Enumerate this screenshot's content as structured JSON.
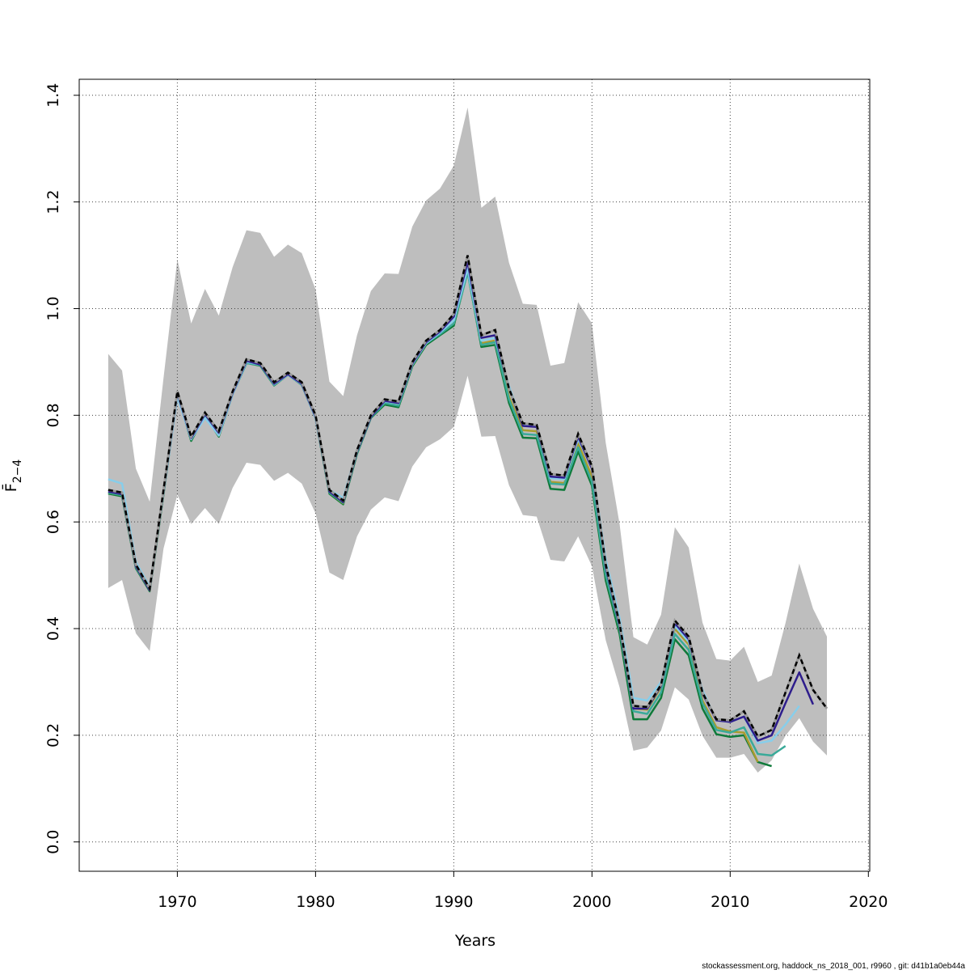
{
  "chart_data": {
    "type": "line",
    "title": "",
    "xlabel": "Years",
    "ylabel": "F̄",
    "ylabel_subscript": "2−4",
    "xlim": [
      1962.9,
      2020.1
    ],
    "ylim": [
      -0.055,
      1.43
    ],
    "xticks": [
      1970,
      1980,
      1990,
      2000,
      2010,
      2020
    ],
    "yticks": [
      0.0,
      0.2,
      0.4,
      0.6,
      0.8,
      1.0,
      1.2,
      1.4
    ],
    "ytick_labels": [
      "0.0",
      "0.2",
      "0.4",
      "0.6",
      "0.8",
      "1.0",
      "1.2",
      "1.4"
    ],
    "xtick_labels": [
      "1970",
      "1980",
      "1990",
      "2000",
      "2010",
      "2020"
    ],
    "grid": true,
    "x_start": 1965,
    "band": {
      "color": "#bebebe",
      "upper": [
        0.915,
        0.884,
        0.7,
        0.638,
        0.87,
        1.092,
        0.972,
        1.037,
        0.987,
        1.078,
        1.147,
        1.142,
        1.097,
        1.12,
        1.104,
        1.036,
        0.863,
        0.836,
        0.95,
        1.033,
        1.066,
        1.065,
        1.154,
        1.203,
        1.225,
        1.268,
        1.377,
        1.189,
        1.21,
        1.086,
        1.009,
        1.007,
        0.893,
        0.898,
        1.012,
        0.972,
        0.748,
        0.596,
        0.384,
        0.37,
        0.426,
        0.59,
        0.552,
        0.411,
        0.343,
        0.34,
        0.366,
        0.3,
        0.312,
        0.41,
        0.522,
        0.437,
        0.385
      ],
      "lower": [
        0.476,
        0.491,
        0.391,
        0.358,
        0.55,
        0.651,
        0.596,
        0.626,
        0.596,
        0.664,
        0.711,
        0.707,
        0.677,
        0.692,
        0.672,
        0.616,
        0.505,
        0.491,
        0.573,
        0.623,
        0.646,
        0.639,
        0.704,
        0.74,
        0.755,
        0.778,
        0.874,
        0.76,
        0.761,
        0.669,
        0.613,
        0.61,
        0.529,
        0.526,
        0.573,
        0.517,
        0.378,
        0.29,
        0.171,
        0.177,
        0.209,
        0.29,
        0.267,
        0.199,
        0.158,
        0.158,
        0.165,
        0.13,
        0.153,
        0.199,
        0.232,
        0.188,
        0.162
      ]
    },
    "series": [
      {
        "color": "#0f7a3a",
        "dashed": false,
        "values": [
          0.653,
          0.648,
          0.513,
          0.47,
          0.652,
          0.84,
          0.752,
          0.8,
          0.76,
          0.84,
          0.898,
          0.893,
          0.856,
          0.876,
          0.857,
          0.795,
          0.653,
          0.633,
          0.728,
          0.795,
          0.82,
          0.815,
          0.892,
          0.932,
          0.95,
          0.968,
          1.07,
          0.928,
          0.932,
          0.823,
          0.758,
          0.757,
          0.662,
          0.66,
          0.732,
          0.668,
          0.49,
          0.39,
          0.23,
          0.23,
          0.27,
          0.38,
          0.35,
          0.25,
          0.202,
          0.197,
          0.2,
          0.15,
          0.142
        ]
      },
      {
        "color": "#a89c2e",
        "dashed": false,
        "values": [
          0.655,
          0.65,
          0.515,
          0.472,
          0.655,
          0.842,
          0.755,
          0.802,
          0.762,
          0.842,
          0.9,
          0.895,
          0.858,
          0.878,
          0.86,
          0.797,
          0.655,
          0.635,
          0.732,
          0.798,
          0.823,
          0.82,
          0.895,
          0.935,
          0.953,
          0.972,
          1.072,
          0.935,
          0.94,
          0.835,
          0.772,
          0.77,
          0.675,
          0.673,
          0.748,
          0.685,
          0.505,
          0.4,
          0.25,
          0.248,
          0.29,
          0.4,
          0.37,
          0.265,
          0.215,
          0.207,
          0.205,
          0.15
        ]
      },
      {
        "color": "#3aaa99",
        "dashed": false,
        "values": [
          0.655,
          0.65,
          0.515,
          0.472,
          0.655,
          0.838,
          0.755,
          0.798,
          0.762,
          0.84,
          0.898,
          0.894,
          0.857,
          0.876,
          0.858,
          0.795,
          0.655,
          0.636,
          0.73,
          0.796,
          0.823,
          0.818,
          0.895,
          0.935,
          0.952,
          0.972,
          1.068,
          0.932,
          0.937,
          0.83,
          0.765,
          0.763,
          0.672,
          0.67,
          0.74,
          0.675,
          0.5,
          0.4,
          0.245,
          0.24,
          0.28,
          0.39,
          0.36,
          0.26,
          0.21,
          0.205,
          0.215,
          0.165,
          0.162,
          0.18
        ]
      },
      {
        "color": "#87ceeb",
        "dashed": false,
        "values": [
          0.68,
          0.672,
          0.525,
          0.478,
          0.655,
          0.835,
          0.755,
          0.795,
          0.762,
          0.84,
          0.9,
          0.895,
          0.858,
          0.876,
          0.858,
          0.795,
          0.66,
          0.645,
          0.735,
          0.798,
          0.826,
          0.822,
          0.895,
          0.935,
          0.955,
          0.978,
          1.075,
          0.94,
          0.945,
          0.855,
          0.782,
          0.78,
          0.682,
          0.68,
          0.755,
          0.705,
          0.53,
          0.42,
          0.27,
          0.265,
          0.3,
          0.405,
          0.375,
          0.285,
          0.228,
          0.225,
          0.235,
          0.185,
          0.19,
          0.22,
          0.255
        ]
      },
      {
        "color": "#2e1d8c",
        "dashed": false,
        "values": [
          0.657,
          0.652,
          0.517,
          0.472,
          0.657,
          0.842,
          0.757,
          0.802,
          0.767,
          0.842,
          0.902,
          0.895,
          0.859,
          0.877,
          0.859,
          0.797,
          0.657,
          0.637,
          0.732,
          0.797,
          0.827,
          0.823,
          0.897,
          0.937,
          0.957,
          0.985,
          1.088,
          0.945,
          0.95,
          0.85,
          0.78,
          0.778,
          0.685,
          0.683,
          0.76,
          0.7,
          0.515,
          0.405,
          0.25,
          0.25,
          0.293,
          0.41,
          0.38,
          0.278,
          0.228,
          0.225,
          0.235,
          0.19,
          0.2,
          0.26,
          0.318,
          0.258
        ]
      },
      {
        "color": "#000000",
        "dashed": true,
        "values": [
          0.66,
          0.655,
          0.52,
          0.475,
          0.66,
          0.845,
          0.76,
          0.805,
          0.77,
          0.845,
          0.905,
          0.898,
          0.862,
          0.88,
          0.862,
          0.8,
          0.66,
          0.64,
          0.735,
          0.8,
          0.83,
          0.826,
          0.9,
          0.94,
          0.96,
          0.99,
          1.1,
          0.95,
          0.96,
          0.85,
          0.785,
          0.782,
          0.69,
          0.687,
          0.765,
          0.705,
          0.52,
          0.41,
          0.255,
          0.253,
          0.295,
          0.415,
          0.385,
          0.28,
          0.23,
          0.228,
          0.245,
          0.198,
          0.21,
          0.28,
          0.35,
          0.285,
          0.25
        ]
      }
    ]
  },
  "footnote": "stockassessment.org, haddock_ns_2018_001, r9960 , git: d41b1a0eb44a"
}
